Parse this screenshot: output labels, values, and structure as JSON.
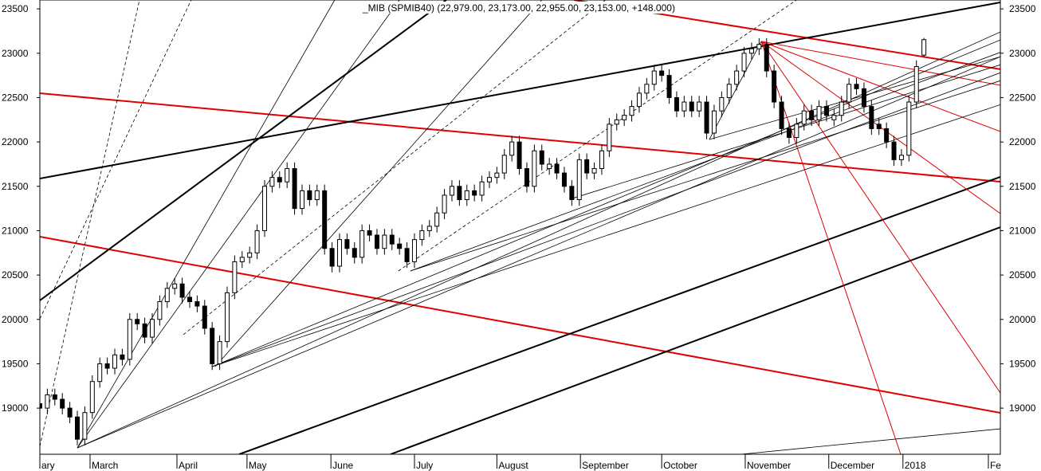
{
  "chart_data": {
    "type": "candlestick",
    "title": "_MIB (SPMIB40) (22,979.00, 23,173.00, 22,955.00, 23,153.00, +148.000)",
    "xlim": [
      0,
      256.4
    ],
    "ylim": [
      18480,
      23600
    ],
    "yticks": [
      19000,
      19500,
      20000,
      20500,
      21000,
      21500,
      22000,
      22500,
      23000,
      23500
    ],
    "xticks": [
      {
        "value": 0,
        "label": "ary"
      },
      {
        "value": 13.4,
        "label": "March"
      },
      {
        "value": 36.6,
        "label": "April"
      },
      {
        "value": 55.3,
        "label": "May"
      },
      {
        "value": 77.7,
        "label": "June"
      },
      {
        "value": 100,
        "label": "July"
      },
      {
        "value": 122,
        "label": "August"
      },
      {
        "value": 144.3,
        "label": "September"
      },
      {
        "value": 166,
        "label": "October"
      },
      {
        "value": 188.3,
        "label": "November"
      },
      {
        "value": 210.6,
        "label": "December"
      },
      {
        "value": 230.4,
        "label": "2018"
      },
      {
        "value": 253.2,
        "label": "Fe"
      }
    ],
    "up_color": "#ffffff",
    "down_color": "#000000",
    "x": [
      0,
      2,
      4,
      6,
      8,
      10,
      12,
      14,
      16,
      18,
      20,
      22,
      24,
      26,
      28,
      30,
      32,
      34,
      36,
      38,
      40,
      42,
      44,
      46,
      48,
      50,
      52,
      54,
      56,
      58,
      60,
      62,
      64,
      66,
      68,
      70,
      72,
      74,
      76,
      78,
      80,
      82,
      84,
      86,
      88,
      90,
      92,
      94,
      96,
      98,
      100,
      102,
      104,
      106,
      108,
      110,
      112,
      114,
      116,
      118,
      120,
      122,
      124,
      126,
      128,
      130,
      132,
      134,
      136,
      138,
      140,
      142,
      144,
      146,
      148,
      150,
      152,
      154,
      156,
      158,
      160,
      162,
      164,
      166,
      168,
      170,
      172,
      174,
      176,
      178,
      180,
      182,
      184,
      186,
      188,
      190,
      192,
      194,
      196,
      198,
      200,
      202,
      204,
      206,
      208,
      210,
      212,
      214,
      216,
      218,
      220,
      222,
      224,
      226,
      228,
      230,
      232,
      234,
      236
    ],
    "open": [
      19050,
      19000,
      19150,
      19100,
      19000,
      18900,
      18650,
      18950,
      19300,
      19500,
      19450,
      19600,
      19550,
      20000,
      19950,
      19800,
      20000,
      20200,
      20350,
      20400,
      20250,
      20200,
      20150,
      19900,
      19500,
      19750,
      20300,
      20650,
      20700,
      20750,
      21000,
      21500,
      21600,
      21550,
      21700,
      21250,
      21450,
      21350,
      21450,
      20800,
      20600,
      20900,
      20800,
      20700,
      21000,
      20950,
      20800,
      20950,
      20850,
      20800,
      20650,
      20900,
      21000,
      21050,
      21200,
      21400,
      21500,
      21350,
      21450,
      21400,
      21550,
      21600,
      21650,
      21850,
      22000,
      21700,
      21500,
      21900,
      21700,
      21750,
      21650,
      21500,
      21350,
      21800,
      21650,
      21700,
      21900,
      22200,
      22250,
      22300,
      22400,
      22550,
      22650,
      22800,
      22750,
      22500,
      22350,
      22450,
      22350,
      22450,
      22100,
      22350,
      22500,
      22650,
      22800,
      23000,
      23050,
      23100,
      22800,
      22450,
      22150,
      22050,
      22200,
      22350,
      22250,
      22400,
      22250,
      22300,
      22450,
      22650,
      22600,
      22400,
      22200,
      22150,
      22000,
      21800,
      21850,
      22450,
      22979
    ],
    "high": [
      19120,
      19220,
      19220,
      19170,
      19070,
      18970,
      19020,
      19370,
      19570,
      19570,
      19670,
      19670,
      20070,
      20070,
      20020,
      20070,
      20270,
      20420,
      20470,
      20470,
      20320,
      20270,
      20220,
      19970,
      19820,
      20370,
      20720,
      20770,
      20820,
      21070,
      21570,
      21670,
      21670,
      21770,
      21770,
      21520,
      21520,
      21520,
      21520,
      20870,
      20970,
      20970,
      20870,
      21070,
      21070,
      21020,
      21020,
      21020,
      20920,
      20870,
      20970,
      21070,
      21120,
      21270,
      21470,
      21570,
      21570,
      21520,
      21520,
      21620,
      21670,
      21720,
      21920,
      22070,
      22070,
      21770,
      21970,
      21970,
      21820,
      21820,
      21720,
      21570,
      21870,
      21870,
      21770,
      21970,
      22270,
      22320,
      22370,
      22470,
      22620,
      22720,
      22870,
      22870,
      22820,
      22570,
      22520,
      22520,
      22520,
      22520,
      22420,
      22570,
      22720,
      22870,
      23070,
      23120,
      23170,
      23170,
      22870,
      22520,
      22220,
      22270,
      22420,
      22420,
      22470,
      22470,
      22370,
      22520,
      22720,
      22720,
      22670,
      22470,
      22270,
      22220,
      22070,
      21920,
      22520,
      22920,
      23173
    ],
    "low": [
      18930,
      18930,
      19030,
      18930,
      18830,
      18580,
      18580,
      18880,
      19230,
      19380,
      19380,
      19480,
      19480,
      19880,
      19730,
      19730,
      19930,
      20130,
      20280,
      20180,
      20130,
      20080,
      19830,
      19430,
      19430,
      19680,
      20230,
      20580,
      20630,
      20680,
      20930,
      21430,
      21480,
      21480,
      21180,
      21180,
      21280,
      21280,
      20730,
      20530,
      20530,
      20730,
      20630,
      20630,
      20880,
      20730,
      20730,
      20780,
      20730,
      20580,
      20580,
      20830,
      20930,
      20980,
      21130,
      21330,
      21280,
      21280,
      21330,
      21330,
      21480,
      21530,
      21580,
      21780,
      21630,
      21430,
      21430,
      21680,
      21630,
      21580,
      21430,
      21280,
      21280,
      21580,
      21580,
      21630,
      21830,
      22130,
      22180,
      22230,
      22330,
      22480,
      22580,
      22680,
      22430,
      22280,
      22280,
      22280,
      22280,
      22030,
      22030,
      22280,
      22430,
      22580,
      22730,
      22930,
      22980,
      22730,
      22380,
      22080,
      21980,
      21980,
      22130,
      22180,
      22180,
      22230,
      22180,
      22230,
      22380,
      22530,
      22330,
      22080,
      22080,
      21930,
      21730,
      21730,
      21780,
      22380,
      22955
    ],
    "close": [
      19000,
      19150,
      19100,
      19000,
      18900,
      18650,
      18950,
      19300,
      19500,
      19450,
      19600,
      19550,
      20000,
      19950,
      19800,
      20000,
      20200,
      20350,
      20400,
      20250,
      20200,
      20150,
      19900,
      19500,
      19750,
      20300,
      20650,
      20700,
      20750,
      21000,
      21500,
      21600,
      21550,
      21700,
      21250,
      21450,
      21350,
      21450,
      20800,
      20600,
      20900,
      20800,
      20700,
      21000,
      20950,
      20800,
      20950,
      20850,
      20800,
      20650,
      20900,
      21000,
      21050,
      21200,
      21400,
      21500,
      21350,
      21450,
      21400,
      21550,
      21600,
      21650,
      21850,
      22000,
      21700,
      21500,
      21900,
      21750,
      21750,
      21650,
      21500,
      21350,
      21800,
      21650,
      21700,
      21900,
      22200,
      22250,
      22300,
      22400,
      22550,
      22650,
      22800,
      22750,
      22500,
      22350,
      22450,
      22350,
      22450,
      22100,
      22350,
      22500,
      22650,
      22800,
      23000,
      23050,
      23100,
      22800,
      22450,
      22150,
      22050,
      22200,
      22350,
      22250,
      22400,
      22300,
      22300,
      22450,
      22650,
      22600,
      22400,
      22150,
      22150,
      22000,
      21800,
      21850,
      22450,
      22850,
      23153
    ],
    "trendlines": [
      {
        "points": [
          0,
          22549,
          256.4,
          21552
        ],
        "color": "#e00000",
        "width": 2
      },
      {
        "points": [
          0,
          20932,
          256.4,
          18947
        ],
        "color": "#e00000",
        "width": 2
      },
      {
        "points": [
          142.6,
          23600,
          256.4,
          22819
        ],
        "color": "#e00000",
        "width": 2
      },
      {
        "points": [
          0,
          21588,
          256.4,
          23573
        ],
        "color": "#000000",
        "width": 2
      },
      {
        "points": [
          0,
          20214,
          108.5,
          23600
        ],
        "color": "#000000",
        "width": 2
      },
      {
        "points": [
          53.2,
          18480,
          256.4,
          21606
        ],
        "color": "#000000",
        "width": 2
      },
      {
        "points": [
          93.6,
          18480,
          256.4,
          21040
        ],
        "color": "#000000",
        "width": 2
      },
      {
        "points": [
          192.6,
          23133,
          256.4,
          21193
        ],
        "color": "#e00000",
        "width": 1
      },
      {
        "points": [
          192.6,
          23133,
          256.4,
          19172
        ],
        "color": "#e00000",
        "width": 1
      },
      {
        "points": [
          192.6,
          23133,
          229.8,
          18480
        ],
        "color": "#e00000",
        "width": 1
      },
      {
        "points": [
          192.6,
          23133,
          256.4,
          22118
        ],
        "color": "#e00000",
        "width": 1
      },
      {
        "points": [
          192.6,
          23133,
          256.4,
          22639
        ],
        "color": "#e00000",
        "width": 1
      },
      {
        "points": [
          10,
          18552,
          78.7,
          23600
        ],
        "color": "#000000",
        "width": 0.8
      },
      {
        "points": [
          10,
          18552,
          96,
          23600
        ],
        "color": "#000000",
        "width": 0.8
      },
      {
        "points": [
          10,
          18552,
          256.4,
          23240
        ],
        "color": "#000000",
        "width": 0.8
      },
      {
        "points": [
          10,
          18552,
          256.4,
          22960
        ],
        "color": "#000000",
        "width": 0.8
      },
      {
        "points": [
          46,
          19468,
          256.4,
          23150
        ],
        "color": "#000000",
        "width": 0.8
      },
      {
        "points": [
          46,
          19468,
          256.4,
          22780
        ],
        "color": "#000000",
        "width": 0.8
      },
      {
        "points": [
          46,
          19468,
          256.4,
          22420
        ],
        "color": "#000000",
        "width": 0.8
      },
      {
        "points": [
          46.8,
          19468,
          134,
          23600
        ],
        "color": "#000000",
        "width": 0.8
      },
      {
        "points": [
          98.9,
          20546,
          256.4,
          23010
        ],
        "color": "#000000",
        "width": 0.8
      },
      {
        "points": [
          98.9,
          20546,
          256.4,
          22690
        ],
        "color": "#000000",
        "width": 0.8
      },
      {
        "points": [
          141.5,
          21355,
          256.4,
          22870
        ],
        "color": "#000000",
        "width": 0.8
      },
      {
        "points": [
          178.7,
          22028,
          256.4,
          22960
        ],
        "color": "#000000",
        "width": 0.8
      },
      {
        "points": [
          178.7,
          22028,
          192.6,
          23133
        ],
        "color": "#000000",
        "width": 0.8
      },
      {
        "points": [
          187.2,
          18480,
          256.4,
          18767
        ],
        "color": "#000000",
        "width": 0.8
      },
      {
        "points": [
          0,
          20007,
          40.4,
          23600
        ],
        "color": "#000000",
        "width": 0.8,
        "dash": true
      },
      {
        "points": [
          0,
          18570,
          26.6,
          23600
        ],
        "color": "#000000",
        "width": 0.8,
        "dash": true
      },
      {
        "points": [
          38.3,
          19828,
          151,
          23600
        ],
        "color": "#000000",
        "width": 0.8,
        "dash": true
      },
      {
        "points": [
          95.7,
          20546,
          202,
          23600
        ],
        "color": "#000000",
        "width": 0.8,
        "dash": true
      }
    ]
  }
}
